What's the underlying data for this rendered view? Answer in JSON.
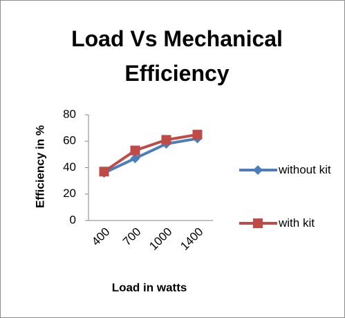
{
  "chart_data": {
    "type": "line",
    "title": "Load Vs Mechanical Efficiency",
    "x_label": "Load in watts",
    "y_label": "Efficiency in %",
    "categories": [
      "400",
      "700",
      "1000",
      "1400"
    ],
    "series": [
      {
        "name": "without kit",
        "color": "#4a7ebb",
        "marker": "diamond",
        "values": [
          36,
          47,
          58,
          62
        ]
      },
      {
        "name": "with kit",
        "color": "#be4b48",
        "marker": "square",
        "values": [
          37,
          53,
          61,
          65
        ]
      }
    ],
    "ylim": [
      0,
      80
    ],
    "yticks": [
      0,
      20,
      40,
      60,
      80
    ],
    "grid": false,
    "legend": "right"
  }
}
